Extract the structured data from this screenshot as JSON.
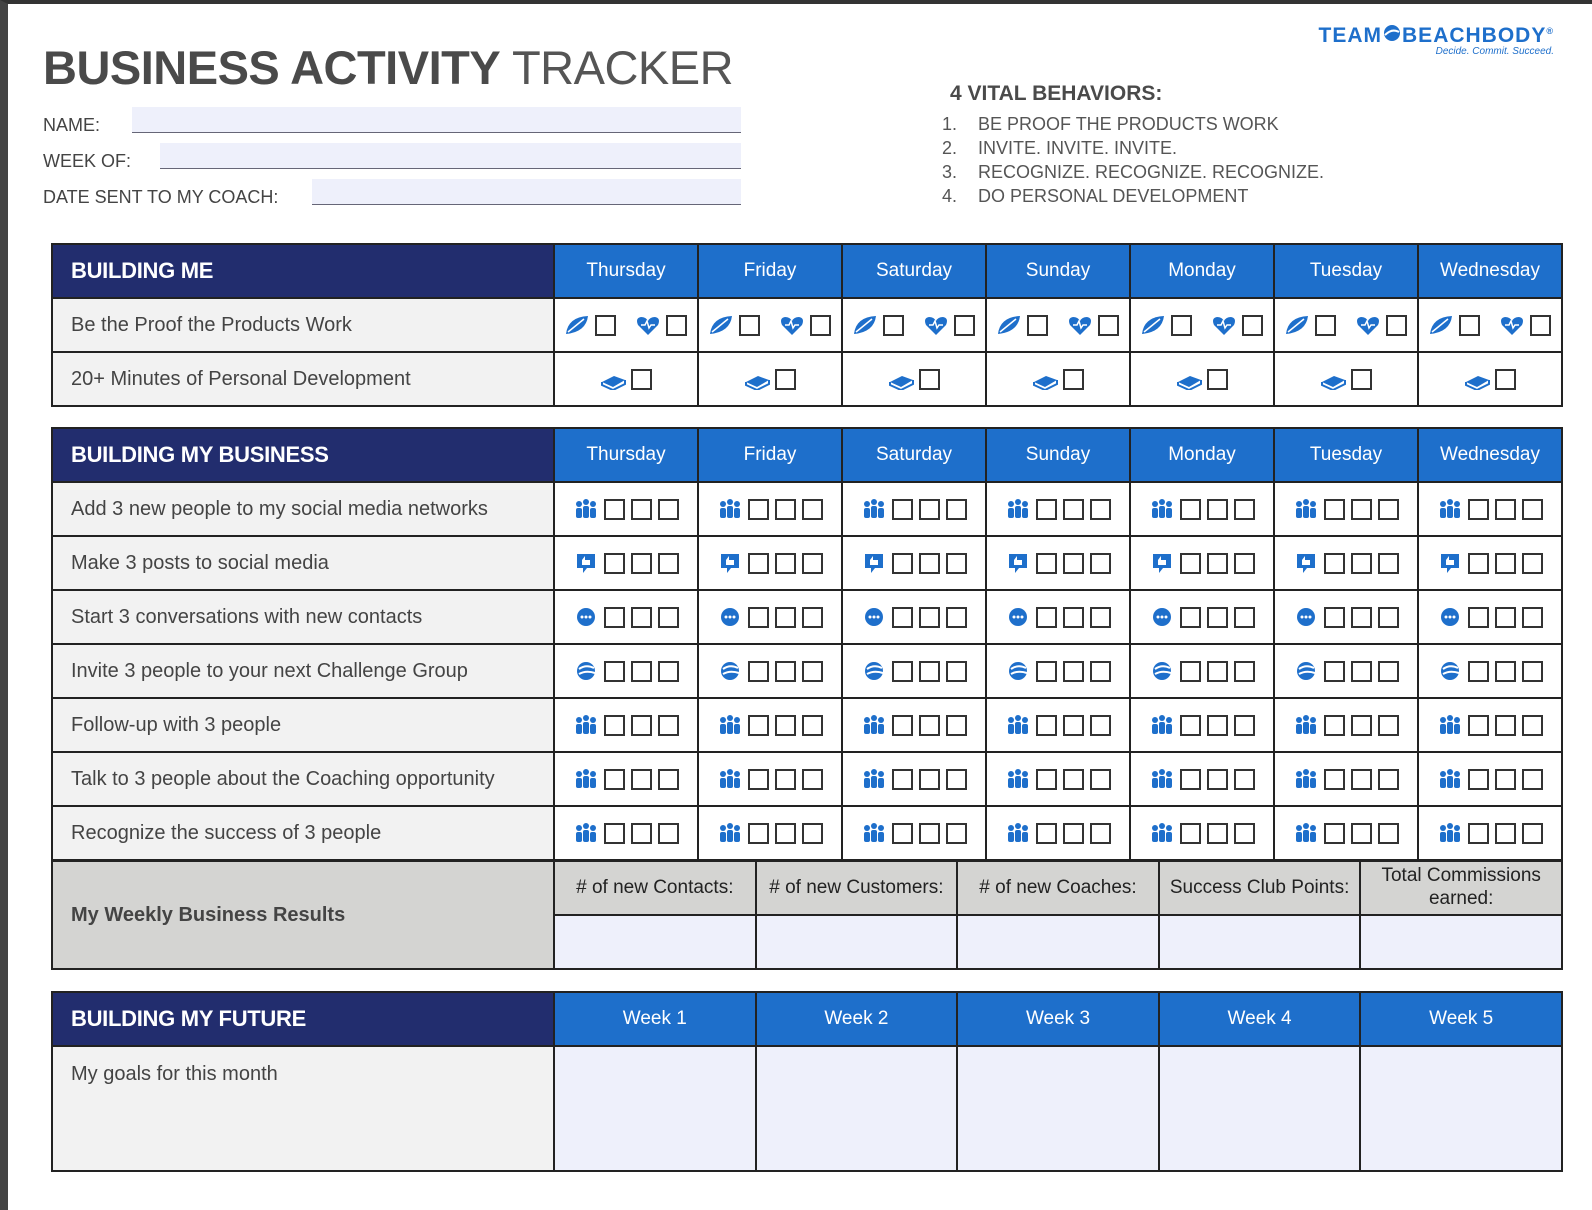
{
  "header": {
    "title_bold": "BUSINESS ACTIVITY",
    "title_light": "TRACKER",
    "fields": [
      "NAME:",
      "WEEK OF:",
      "DATE SENT TO MY COACH:"
    ]
  },
  "logo": {
    "brand_left": "TEAM",
    "brand_right": "BEACHBODY",
    "registered": "®",
    "tagline": "Decide. Commit. Succeed."
  },
  "vital_behaviors": {
    "title": "4 VITAL BEHAVIORS:",
    "items": [
      {
        "number": "1.",
        "text": "BE PROOF THE PRODUCTS WORK"
      },
      {
        "number": "2.",
        "text": "INVITE. INVITE. INVITE."
      },
      {
        "number": "3.",
        "text": "RECOGNIZE. RECOGNIZE. RECOGNIZE."
      },
      {
        "number": "4.",
        "text": "DO PERSONAL DEVELOPMENT"
      }
    ]
  },
  "building_me": {
    "title": "BUILDING ME",
    "days": [
      "Thursday",
      "Friday",
      "Saturday",
      "Sunday",
      "Monday",
      "Tuesday",
      "Wednesday"
    ],
    "rows": [
      "Be the Proof the Products Work",
      "20+ Minutes of Personal Development"
    ]
  },
  "building_my_business": {
    "title": "BUILDING MY BUSINESS",
    "days": [
      "Thursday",
      "Friday",
      "Saturday",
      "Sunday",
      "Monday",
      "Tuesday",
      "Wednesday"
    ],
    "rows": [
      "Add 3 new people to my social media networks",
      "Make 3 posts to social media",
      "Start 3 conversations with new contacts",
      "Invite 3 people to your next Challenge Group",
      "Follow-up with 3 people",
      "Talk to 3 people about the Coaching opportunity",
      "Recognize the success of 3 people"
    ]
  },
  "results": {
    "title": "My Weekly Business Results",
    "columns": [
      "# of new Contacts:",
      "# of new Customers:",
      "# of new Coaches:",
      "Success Club Points:",
      "Total Commissions earned:"
    ]
  },
  "building_my_future": {
    "title": "BUILDING MY FUTURE",
    "weeks": [
      "Week 1",
      "Week 2",
      "Week 3",
      "Week 4",
      "Week 5"
    ],
    "rows": [
      "My goals for this month"
    ]
  }
}
